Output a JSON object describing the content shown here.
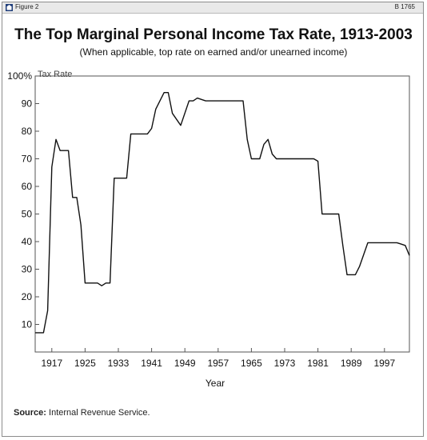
{
  "header": {
    "figure_label": "Figure 2",
    "code": "B 1765"
  },
  "title": "The Top Marginal Personal Income Tax Rate, 1913-2003",
  "subtitle": "(When applicable, top rate on earned and/or unearned income)",
  "source": {
    "label": "Source:",
    "text": "Internal Revenue Service."
  },
  "colors": {
    "line": "#111111",
    "frame": "#8c8c8c",
    "header_bar": "#e9e9e9"
  },
  "chart_data": {
    "type": "line",
    "xlabel": "Year",
    "ylabel": "Tax Rate",
    "xlim": [
      1913,
      2003
    ],
    "ylim": [
      0,
      100
    ],
    "grid": false,
    "x_ticks": [
      "1917",
      "1925",
      "1933",
      "1941",
      "1949",
      "1957",
      "1965",
      "1973",
      "1981",
      "1989",
      "1997"
    ],
    "y_ticks": [
      "100%",
      "90",
      "80",
      "70",
      "60",
      "50",
      "40",
      "30",
      "20",
      "10"
    ],
    "x": [
      1913,
      1915,
      1916,
      1917,
      1918,
      1919,
      1921,
      1922,
      1923,
      1924,
      1925,
      1928,
      1929,
      1930,
      1931,
      1932,
      1935,
      1936,
      1940,
      1941,
      1942,
      1944,
      1945,
      1946,
      1948,
      1950,
      1951,
      1952,
      1954,
      1963,
      1964,
      1965,
      1967,
      1968,
      1969,
      1970,
      1971,
      1980,
      1981,
      1982,
      1986,
      1987,
      1988,
      1990,
      1991,
      1993,
      2000,
      2001,
      2002,
      2003
    ],
    "series": [
      {
        "values": [
          7,
          7,
          15,
          67,
          77,
          73,
          73,
          56,
          56,
          46,
          25,
          25,
          24,
          25,
          25,
          63,
          63,
          79,
          79,
          81,
          88,
          94,
          94,
          86.45,
          82.13,
          91,
          91,
          92,
          91,
          91,
          77,
          70,
          70,
          75.25,
          77,
          71.75,
          70,
          70,
          69.13,
          50,
          50,
          38.5,
          28,
          28,
          31,
          39.6,
          39.6,
          39.1,
          38.6,
          35
        ]
      }
    ]
  }
}
